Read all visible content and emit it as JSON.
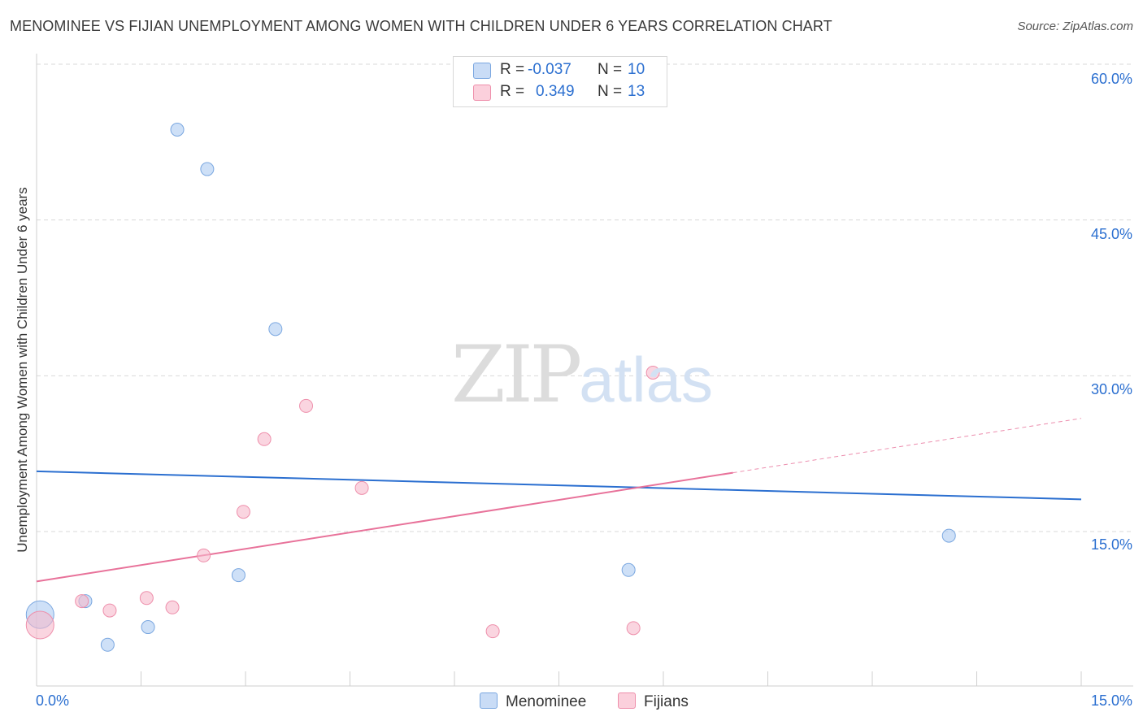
{
  "header": {
    "title": "MENOMINEE VS FIJIAN UNEMPLOYMENT AMONG WOMEN WITH CHILDREN UNDER 6 YEARS CORRELATION CHART",
    "source": "Source: ZipAtlas.com"
  },
  "watermark": {
    "zip": "ZIP",
    "atlas": "atlas"
  },
  "legend": {
    "rows": [
      {
        "r_label": "R =",
        "r_value": "-0.037",
        "n_label": "N =",
        "n_value": "10",
        "color": "#aecbf2"
      },
      {
        "r_label": "R =",
        "r_value": "0.349",
        "n_label": "N =",
        "n_value": "13",
        "color": "#f7b9cb"
      }
    ]
  },
  "bottom_legend": {
    "menominee": "Menominee",
    "fijians": "Fijians"
  },
  "chart_data": {
    "type": "scatter",
    "title": "MENOMINEE VS FIJIAN UNEMPLOYMENT AMONG WOMEN WITH CHILDREN UNDER 6 YEARS CORRELATION CHART",
    "xlabel": "",
    "ylabel": "Unemployment Among Women with Children Under 6 years",
    "xlim": [
      0,
      15
    ],
    "ylim": [
      0,
      62
    ],
    "x_tick_labels": [
      "0.0%",
      "15.0%"
    ],
    "y_ticks": [
      15,
      30,
      45,
      60
    ],
    "y_tick_labels": [
      "15.0%",
      "30.0%",
      "45.0%",
      "60.0%"
    ],
    "grid": true,
    "series": [
      {
        "name": "Menominee",
        "color": "#aecbf2",
        "stroke": "#7aa7e0",
        "line_color": "#2b6fd0",
        "points": [
          {
            "x": 0.05,
            "y": 7.0,
            "big": true
          },
          {
            "x": 0.7,
            "y": 8.3
          },
          {
            "x": 1.02,
            "y": 4.1
          },
          {
            "x": 1.6,
            "y": 5.8
          },
          {
            "x": 2.02,
            "y": 53.7
          },
          {
            "x": 2.45,
            "y": 49.9
          },
          {
            "x": 2.9,
            "y": 10.8
          },
          {
            "x": 3.43,
            "y": 34.5
          },
          {
            "x": 8.5,
            "y": 11.3
          },
          {
            "x": 13.1,
            "y": 14.6
          }
        ],
        "trend": {
          "x0": 0,
          "y0": 20.8,
          "x1": 15,
          "y1": 18.1,
          "dashed_from": null
        }
      },
      {
        "name": "Fijians",
        "color": "#f7b9cb",
        "stroke": "#ee8fab",
        "line_color": "#e8729a",
        "points": [
          {
            "x": 0.05,
            "y": 6.0,
            "big": true
          },
          {
            "x": 0.65,
            "y": 8.3
          },
          {
            "x": 1.05,
            "y": 7.4
          },
          {
            "x": 1.58,
            "y": 8.6
          },
          {
            "x": 1.95,
            "y": 7.7
          },
          {
            "x": 2.4,
            "y": 12.7
          },
          {
            "x": 2.97,
            "y": 16.9
          },
          {
            "x": 3.27,
            "y": 23.9
          },
          {
            "x": 3.87,
            "y": 27.1
          },
          {
            "x": 4.67,
            "y": 19.2
          },
          {
            "x": 6.55,
            "y": 5.4
          },
          {
            "x": 8.57,
            "y": 5.7
          },
          {
            "x": 8.85,
            "y": 30.3
          }
        ],
        "trend": {
          "x0": 0,
          "y0": 10.2,
          "x1": 15,
          "y1": 25.9,
          "dashed_from": 10.0
        }
      }
    ]
  }
}
